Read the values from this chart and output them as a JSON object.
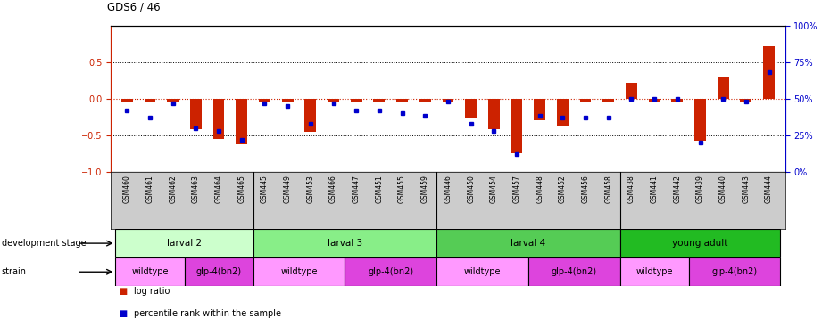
{
  "title": "GDS6 / 46",
  "samples": [
    "GSM460",
    "GSM461",
    "GSM462",
    "GSM463",
    "GSM464",
    "GSM465",
    "GSM445",
    "GSM449",
    "GSM453",
    "GSM466",
    "GSM447",
    "GSM451",
    "GSM455",
    "GSM459",
    "GSM446",
    "GSM450",
    "GSM454",
    "GSM457",
    "GSM448",
    "GSM452",
    "GSM456",
    "GSM458",
    "GSM438",
    "GSM441",
    "GSM442",
    "GSM439",
    "GSM440",
    "GSM443",
    "GSM444"
  ],
  "log_ratio": [
    -0.05,
    -0.05,
    -0.05,
    -0.42,
    -0.55,
    -0.62,
    -0.05,
    -0.05,
    -0.45,
    -0.05,
    -0.05,
    -0.05,
    -0.05,
    -0.05,
    -0.05,
    -0.27,
    -0.42,
    -0.75,
    -0.3,
    -0.37,
    -0.05,
    -0.05,
    0.22,
    -0.05,
    -0.05,
    -0.58,
    0.3,
    -0.05,
    0.72
  ],
  "percentile": [
    42,
    37,
    47,
    30,
    28,
    22,
    47,
    45,
    33,
    47,
    42,
    42,
    40,
    38,
    48,
    33,
    28,
    12,
    38,
    37,
    37,
    37,
    50,
    50,
    50,
    20,
    50,
    48,
    68
  ],
  "dev_groups": [
    {
      "label": "larval 2",
      "start": 0,
      "end": 5,
      "color": "#ccffcc"
    },
    {
      "label": "larval 3",
      "start": 6,
      "end": 13,
      "color": "#88ee88"
    },
    {
      "label": "larval 4",
      "start": 14,
      "end": 21,
      "color": "#55cc55"
    },
    {
      "label": "young adult",
      "start": 22,
      "end": 28,
      "color": "#22bb22"
    }
  ],
  "strain_groups": [
    {
      "label": "wildtype",
      "start": 0,
      "end": 2,
      "color": "#ff99ff"
    },
    {
      "label": "glp-4(bn2)",
      "start": 3,
      "end": 5,
      "color": "#dd44dd"
    },
    {
      "label": "wildtype",
      "start": 6,
      "end": 9,
      "color": "#ff99ff"
    },
    {
      "label": "glp-4(bn2)",
      "start": 10,
      "end": 13,
      "color": "#dd44dd"
    },
    {
      "label": "wildtype",
      "start": 14,
      "end": 17,
      "color": "#ff99ff"
    },
    {
      "label": "glp-4(bn2)",
      "start": 18,
      "end": 21,
      "color": "#dd44dd"
    },
    {
      "label": "wildtype",
      "start": 22,
      "end": 24,
      "color": "#ff99ff"
    },
    {
      "label": "glp-4(bn2)",
      "start": 25,
      "end": 28,
      "color": "#dd44dd"
    }
  ],
  "ylim": [
    -1.0,
    1.0
  ],
  "yticks_left": [
    -1.0,
    -0.5,
    0.0,
    0.5
  ],
  "yticks_right": [
    0,
    25,
    50,
    75,
    100
  ],
  "bar_color": "#cc2200",
  "dot_color": "#0000cc",
  "background_color": "#ffffff",
  "tick_bg_color": "#cccccc"
}
